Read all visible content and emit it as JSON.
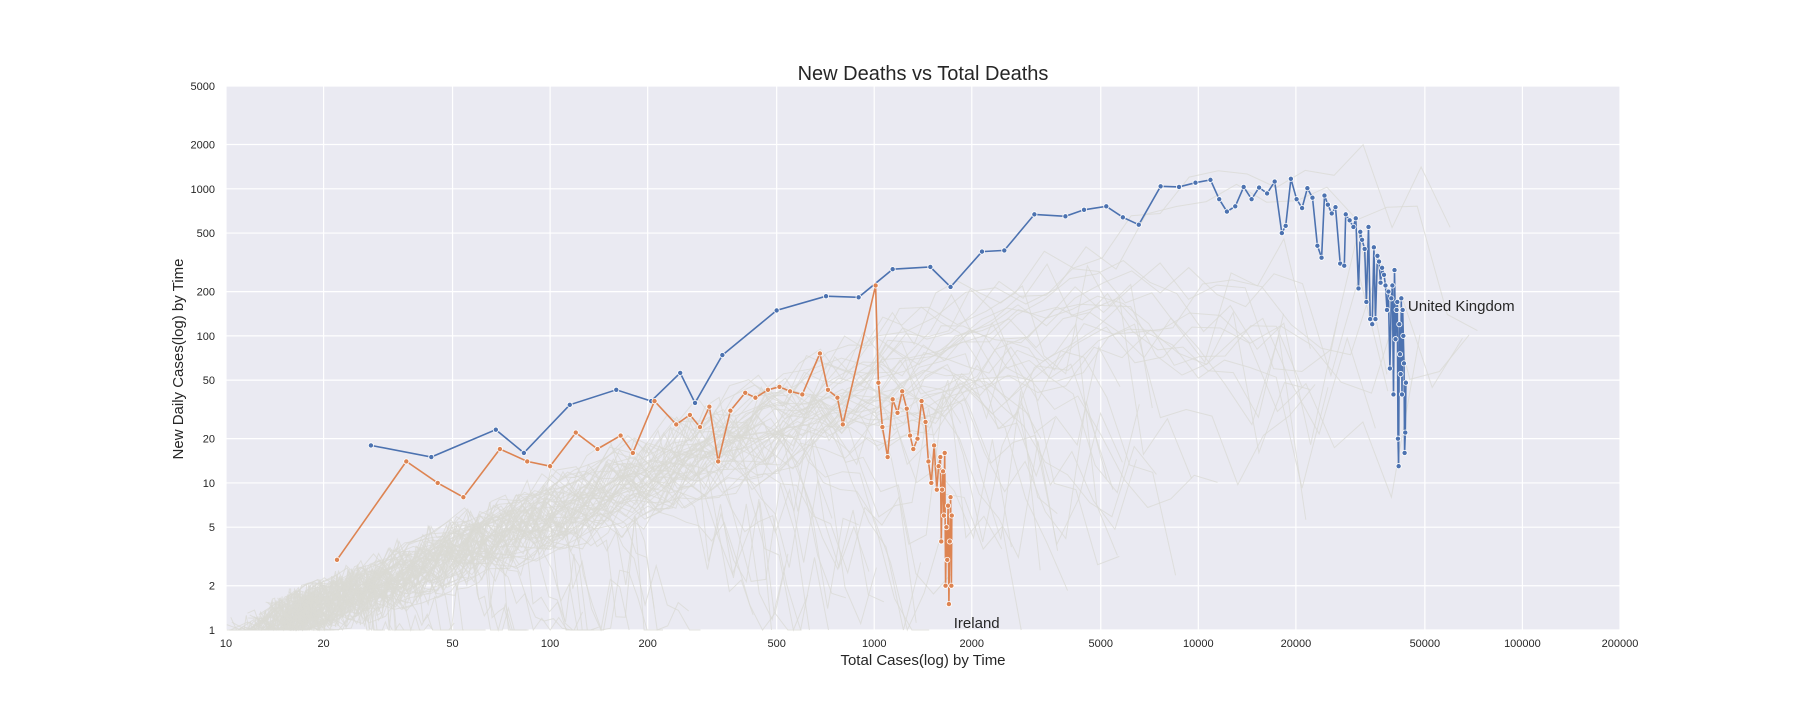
{
  "chart_data": {
    "type": "line",
    "title": "New Deaths vs Total Deaths",
    "xlabel": "Total Cases(log) by Time",
    "ylabel": "New Daily Cases(log) by Time",
    "x_scale": "log",
    "y_scale": "log",
    "xlim": [
      10,
      200000
    ],
    "ylim": [
      1,
      5000
    ],
    "grid": true,
    "x_ticks": [
      10,
      20,
      50,
      100,
      200,
      500,
      1000,
      2000,
      5000,
      10000,
      20000,
      50000,
      100000,
      200000
    ],
    "x_tick_labels": [
      "10",
      "20",
      "50",
      "100",
      "200",
      "500",
      "1000",
      "2000",
      "5000",
      "10000",
      "20000",
      "50000",
      "100000",
      "200000"
    ],
    "y_ticks": [
      1,
      2,
      5,
      10,
      20,
      50,
      100,
      200,
      500,
      1000,
      2000,
      5000
    ],
    "y_tick_labels": [
      "1",
      "2",
      "5",
      "10",
      "20",
      "50",
      "100",
      "200",
      "500",
      "1000",
      "2000",
      "5000"
    ],
    "series": [
      {
        "name": "United Kingdom",
        "color": "#4c72b0",
        "label": "United Kingdom",
        "x": [
          28,
          43,
          68,
          83,
          115,
          160,
          205,
          252,
          280,
          340,
          500,
          710,
          895,
          1140,
          1490,
          1720,
          2150,
          2520,
          3120,
          3890,
          4440,
          5200,
          5850,
          6550,
          7650,
          8720,
          9800,
          10900,
          11600,
          12250,
          13000,
          13800,
          14600,
          15400,
          16300,
          17200,
          18100,
          18600,
          19300,
          20100,
          20900,
          21700,
          22500,
          23300,
          24000,
          24500,
          25100,
          25800,
          26500,
          27400,
          28200,
          28500,
          29300,
          30100,
          30600,
          31200,
          31600,
          32000,
          32600,
          33000,
          33500,
          33900,
          34400,
          34800,
          35200,
          35700,
          36100,
          36500,
          36900,
          37400,
          37800,
          38200,
          38600,
          39000,
          39400,
          39700,
          40000,
          40300,
          40600,
          40900,
          41100,
          41300,
          41500,
          41700,
          41900,
          42100,
          42300,
          42500,
          42700,
          42900,
          43100,
          43300,
          43500,
          43700
        ],
        "y": [
          18,
          15,
          23,
          16,
          34,
          43,
          36,
          56,
          35,
          74,
          149,
          186,
          183,
          284,
          294,
          215,
          374,
          381,
          670,
          650,
          720,
          760,
          640,
          570,
          1040,
          1030,
          1100,
          1150,
          850,
          700,
          760,
          1030,
          850,
          1020,
          930,
          1120,
          500,
          560,
          1170,
          850,
          740,
          1010,
          870,
          410,
          340,
          900,
          780,
          680,
          750,
          310,
          300,
          670,
          610,
          550,
          630,
          210,
          510,
          450,
          390,
          170,
          550,
          130,
          120,
          400,
          130,
          350,
          320,
          230,
          290,
          260,
          220,
          150,
          200,
          60,
          180,
          220,
          40,
          280,
          95,
          150,
          170,
          20,
          13,
          120,
          75,
          55,
          180,
          40,
          150,
          100,
          65,
          16,
          22,
          48
        ]
      },
      {
        "name": "Ireland",
        "color": "#dd8452",
        "label": "Ireland",
        "x": [
          22,
          36,
          45,
          54,
          70,
          85,
          100,
          120,
          140,
          165,
          180,
          210,
          245,
          270,
          290,
          310,
          330,
          360,
          400,
          430,
          470,
          510,
          550,
          600,
          680,
          720,
          770,
          800,
          1010,
          1030,
          1060,
          1100,
          1140,
          1180,
          1220,
          1260,
          1290,
          1320,
          1360,
          1400,
          1440,
          1470,
          1500,
          1530,
          1560,
          1580,
          1600,
          1610,
          1620,
          1630,
          1640,
          1650,
          1660,
          1670,
          1680,
          1690,
          1700,
          1710,
          1720,
          1730,
          1735
        ],
        "y": [
          3,
          14,
          10,
          8,
          17,
          14,
          13,
          22,
          17,
          21,
          16,
          36,
          25,
          29,
          24,
          33,
          14,
          31,
          41,
          38,
          43,
          45,
          42,
          40,
          76,
          43,
          38,
          25,
          220,
          48,
          24,
          15,
          37,
          30,
          42,
          32,
          21,
          17,
          20,
          36,
          26,
          14,
          10,
          18,
          9,
          13,
          15,
          4,
          9,
          12,
          6,
          16,
          2,
          5,
          3,
          7,
          1.5,
          4,
          8,
          2,
          6
        ]
      }
    ],
    "background_series_color": "#d9d9d4"
  }
}
